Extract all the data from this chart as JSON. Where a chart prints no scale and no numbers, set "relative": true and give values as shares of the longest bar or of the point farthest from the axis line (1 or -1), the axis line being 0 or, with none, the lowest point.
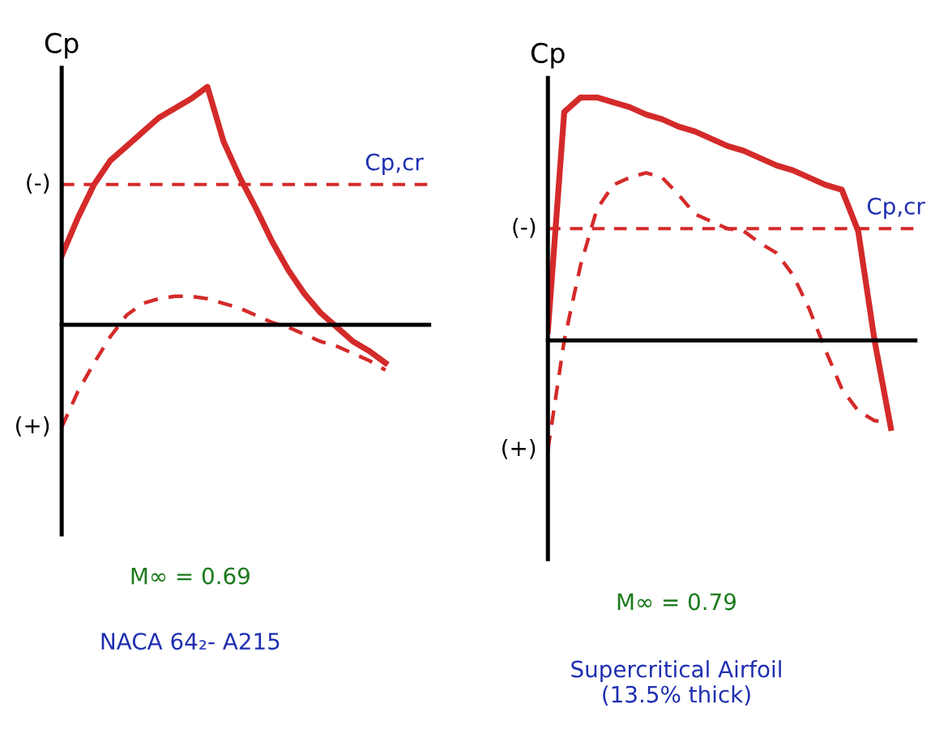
{
  "chart_data": [
    {
      "type": "line",
      "relative": true,
      "ylabel": "Cp",
      "categories": [
        null,
        null,
        null,
        null,
        null,
        null,
        null,
        null,
        null,
        null,
        null,
        null,
        null,
        null,
        null,
        null,
        null,
        null,
        null,
        null,
        null
      ],
      "series": [
        {
          "color": "#d42a2a",
          "line_style": "solid",
          "values": [
            0.29,
            0.45,
            0.59,
            0.69,
            0.75,
            0.81,
            0.87,
            0.91,
            0.95,
            1.0,
            0.77,
            0.62,
            0.49,
            0.35,
            0.23,
            0.13,
            0.05,
            -0.01,
            -0.07,
            -0.11,
            -0.16
          ]
        },
        {
          "color": "#d42a2a",
          "line_style": "dashed",
          "values": [
            -0.43,
            -0.28,
            -0.16,
            -0.05,
            0.04,
            0.09,
            0.11,
            0.12,
            0.12,
            0.11,
            0.09,
            0.07,
            0.04,
            0.01,
            -0.01,
            -0.04,
            -0.07,
            -0.09,
            -0.12,
            -0.15,
            -0.19
          ]
        }
      ],
      "ref_lines": [
        {
          "axis": "y",
          "value": 0.59,
          "label": "Cp,cr",
          "color": "#d42a2a",
          "line_style": "dashed"
        }
      ],
      "annotations": [
        "(-)",
        "(+)",
        "M∞ = 0.69",
        "NACA 64₂- A215"
      ],
      "legend": false,
      "grid": false,
      "marker": "none"
    },
    {
      "type": "line",
      "relative": true,
      "ylabel": "Cp",
      "categories": [
        null,
        null,
        null,
        null,
        null,
        null,
        null,
        null,
        null,
        null,
        null,
        null,
        null,
        null,
        null,
        null,
        null,
        null,
        null,
        null,
        null,
        null
      ],
      "series": [
        {
          "color": "#d42a2a",
          "line_style": "solid",
          "values": [
            0.04,
            0.94,
            1.0,
            1.0,
            0.98,
            0.96,
            0.93,
            0.91,
            0.88,
            0.86,
            0.83,
            0.8,
            0.78,
            0.75,
            0.72,
            0.7,
            0.67,
            0.64,
            0.62,
            0.45,
            0.0,
            -0.36
          ]
        },
        {
          "color": "#d42a2a",
          "line_style": "dashed",
          "values": [
            -0.45,
            0.0,
            0.31,
            0.54,
            0.64,
            0.67,
            0.69,
            0.67,
            0.6,
            0.52,
            0.49,
            0.46,
            0.45,
            0.4,
            0.36,
            0.27,
            0.13,
            -0.04,
            -0.2,
            -0.29,
            -0.33,
            -0.34
          ]
        }
      ],
      "ref_lines": [
        {
          "axis": "y",
          "value": 0.46,
          "label": "Cp,cr",
          "color": "#d42a2a",
          "line_style": "dashed"
        }
      ],
      "annotations": [
        "(-)",
        "(+)",
        "M∞ = 0.79",
        "Supercritical Airfoil\n(13.5% thick)"
      ],
      "legend": false,
      "grid": false,
      "marker": "none"
    }
  ]
}
